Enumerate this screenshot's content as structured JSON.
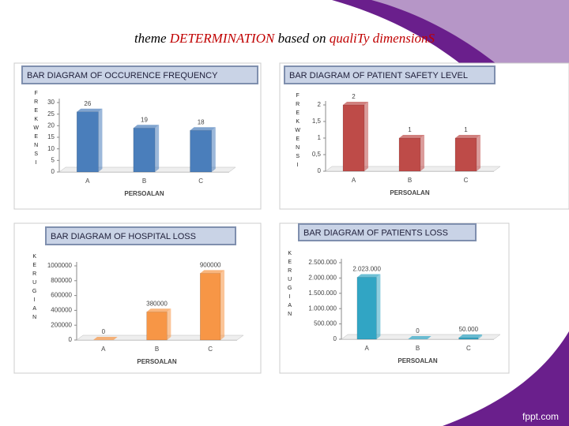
{
  "slide_title": {
    "part1": "theme",
    "part2": "DETERMINATION",
    "part3": "based on",
    "part4": "qualiTy dimensionS"
  },
  "footer": "fppt.com",
  "chart_data": [
    {
      "type": "bar",
      "title": "BAR DIAGRAM OF OCCURENCE FREQUENCY",
      "y_label": "FREKWENSI",
      "x_label": "PERSOALAN",
      "categories": [
        "A",
        "B",
        "C"
      ],
      "values": [
        26,
        19,
        18
      ],
      "color": "#4a7ebb",
      "ylim": [
        0,
        30
      ],
      "yticks": [
        0,
        5,
        10,
        15,
        20,
        25,
        30
      ]
    },
    {
      "type": "bar",
      "title": "BAR DIAGRAM OF PATIENT SAFETY LEVEL",
      "y_label": "FREKWENSI",
      "x_label": "PERSOALAN",
      "categories": [
        "A",
        "B",
        "C"
      ],
      "values": [
        2,
        1,
        1
      ],
      "color": "#be4b48",
      "ylim": [
        0,
        2
      ],
      "yticks": [
        0,
        {
          "value": 0.5,
          "label": "0,5"
        },
        1,
        {
          "value": 1.5,
          "label": "1,5"
        },
        2
      ]
    },
    {
      "type": "bar",
      "title": "BAR DIAGRAM OF HOSPITAL LOSS",
      "y_label": "KERUGIAN",
      "x_label": "PERSOALAN",
      "categories": [
        "A",
        "B",
        "C"
      ],
      "values": [
        0,
        380000,
        900000
      ],
      "color": "#f79646",
      "ylim": [
        0,
        1000000
      ],
      "yticks": [
        0,
        200000,
        400000,
        600000,
        800000,
        1000000
      ]
    },
    {
      "type": "bar",
      "title": "BAR DIAGRAM OF PATIENTS LOSS",
      "y_label": "KERUGIAN",
      "x_label": "PERSOALAN",
      "categories": [
        "A",
        "B",
        "C"
      ],
      "values": [
        2023000,
        0,
        50000
      ],
      "value_labels": [
        "2.023.000",
        "0",
        "50.000"
      ],
      "color": "#31a5c4",
      "ylim": [
        0,
        2500000
      ],
      "yticks": [
        0,
        {
          "value": 500000,
          "label": "500.000"
        },
        {
          "value": 1000000,
          "label": "1.000.000"
        },
        {
          "value": 1500000,
          "label": "1.500.000"
        },
        {
          "value": 2000000,
          "label": "2.000.000"
        },
        {
          "value": 2500000,
          "label": "2.500.000"
        }
      ]
    }
  ]
}
